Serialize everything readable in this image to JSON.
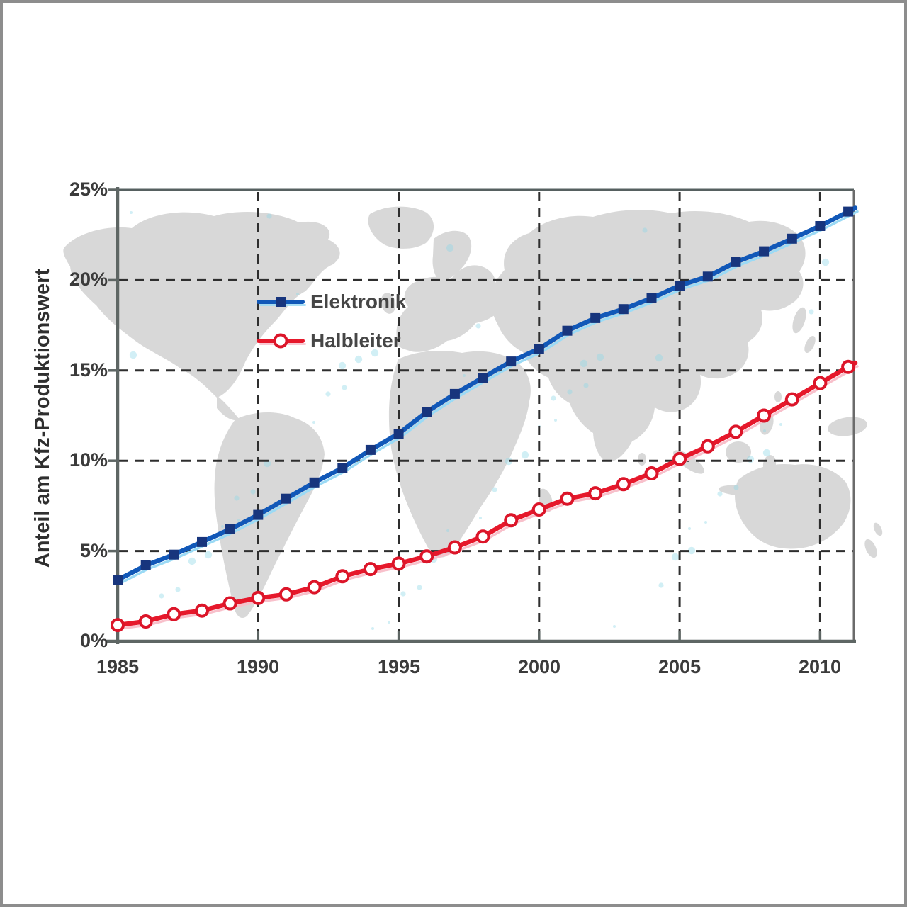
{
  "chart_data": {
    "type": "line",
    "title": "",
    "xlabel": "",
    "ylabel": "Anteil am Kfz-Produktionswert",
    "xlim": [
      1985,
      2011.2
    ],
    "ylim": [
      0,
      25
    ],
    "grid": true,
    "legend_position": "upper-left-inside",
    "background": "world-map",
    "x": [
      1985,
      1986,
      1987,
      1988,
      1989,
      1990,
      1991,
      1992,
      1993,
      1994,
      1995,
      1996,
      1997,
      1998,
      1999,
      2000,
      2001,
      2002,
      2003,
      2004,
      2005,
      2006,
      2007,
      2008,
      2009,
      2010,
      2011
    ],
    "series": [
      {
        "name": "Elektronik",
        "color": "#1158b8",
        "marker": "filled-square",
        "marker_color": "#17357d",
        "values": [
          3.4,
          4.2,
          4.8,
          5.5,
          6.2,
          7.0,
          7.9,
          8.8,
          9.6,
          10.6,
          11.5,
          12.7,
          13.7,
          14.6,
          15.5,
          16.2,
          17.2,
          17.9,
          18.4,
          19.0,
          19.7,
          20.2,
          21.0,
          21.6,
          22.3,
          23.0,
          23.8
        ]
      },
      {
        "name": "Halbleiter",
        "color": "#e6182b",
        "marker": "open-circle",
        "marker_color": "#dc1529",
        "values": [
          0.9,
          1.1,
          1.5,
          1.7,
          2.1,
          2.4,
          2.6,
          3.0,
          3.6,
          4.0,
          4.3,
          4.7,
          5.2,
          5.8,
          6.7,
          7.3,
          7.9,
          8.2,
          8.7,
          9.3,
          10.1,
          10.8,
          11.6,
          12.5,
          13.4,
          14.3,
          15.2
        ]
      }
    ],
    "xticks": {
      "values": [
        1985,
        1990,
        1995,
        2000,
        2005,
        2010
      ],
      "labels": [
        "1985",
        "1990",
        "1995",
        "2000",
        "2005",
        "2010"
      ]
    },
    "yticks": {
      "values": [
        0,
        5,
        10,
        15,
        20,
        25
      ],
      "labels": [
        "0%",
        "5%",
        "10%",
        "15%",
        "20%",
        "25%"
      ]
    }
  }
}
